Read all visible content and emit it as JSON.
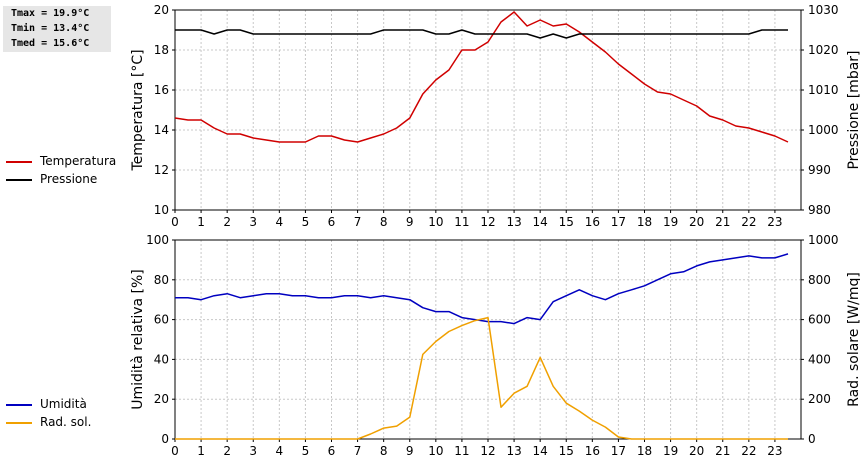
{
  "stats": {
    "tmax": "Tmax = 19.9°C",
    "tmin": "Tmin = 13.4°C",
    "tmed": "Tmed = 15.6°C"
  },
  "legend_top": [
    {
      "label": "Temperatura",
      "color": "#d00000"
    },
    {
      "label": "Pressione",
      "color": "#000000"
    }
  ],
  "legend_bottom": [
    {
      "label": "Umidità",
      "color": "#0000c0"
    },
    {
      "label": "Rad. sol.",
      "color": "#f0a000"
    }
  ],
  "chart_data": [
    {
      "type": "line",
      "grid": true,
      "x": [
        0,
        0.5,
        1,
        1.5,
        2,
        2.5,
        3,
        3.5,
        4,
        4.5,
        5,
        5.5,
        6,
        6.5,
        7,
        7.5,
        8,
        8.5,
        9,
        9.5,
        10,
        10.5,
        11,
        11.5,
        12,
        12.5,
        13,
        13.5,
        14,
        14.5,
        15,
        15.5,
        16,
        16.5,
        17,
        17.5,
        18,
        18.5,
        19,
        19.5,
        20,
        20.5,
        21,
        21.5,
        22,
        22.5,
        23,
        23.5
      ],
      "xticks": [
        "0",
        "1",
        "2",
        "3",
        "4",
        "5",
        "6",
        "7",
        "8",
        "9",
        "10",
        "11",
        "12",
        "13",
        "14",
        "15",
        "16",
        "17",
        "18",
        "19",
        "20",
        "21",
        "22",
        "23"
      ],
      "ylabel": "Temperatura [°C]",
      "ylim": [
        10,
        20
      ],
      "yticks": [
        "10",
        "12",
        "14",
        "16",
        "18",
        "20"
      ],
      "y2label": "Pressione [mbar]",
      "y2lim": [
        980,
        1030
      ],
      "y2ticks": [
        "980",
        "990",
        "1000",
        "1010",
        "1020",
        "1030"
      ],
      "series": [
        {
          "name": "Temperatura",
          "axis": "left",
          "color": "#d00000",
          "values": [
            14.6,
            14.5,
            14.5,
            14.1,
            13.8,
            13.8,
            13.6,
            13.5,
            13.4,
            13.4,
            13.4,
            13.7,
            13.7,
            13.5,
            13.4,
            13.6,
            13.8,
            14.1,
            14.6,
            15.8,
            16.5,
            17.0,
            18.0,
            18.0,
            18.4,
            19.4,
            19.9,
            19.2,
            19.5,
            19.2,
            19.3,
            18.9,
            18.4,
            17.9,
            17.3,
            16.8,
            16.3,
            15.9,
            15.8,
            15.5,
            15.2,
            14.7,
            14.5,
            14.2,
            14.1,
            13.9,
            13.7,
            13.4
          ]
        },
        {
          "name": "Pressione",
          "axis": "right",
          "color": "#000000",
          "values": [
            1025,
            1025,
            1025,
            1024,
            1025,
            1025,
            1024,
            1024,
            1024,
            1024,
            1024,
            1024,
            1024,
            1024,
            1024,
            1024,
            1025,
            1025,
            1025,
            1025,
            1024,
            1024,
            1025,
            1024,
            1024,
            1024,
            1024,
            1024,
            1023,
            1024,
            1023,
            1024,
            1024,
            1024,
            1024,
            1024,
            1024,
            1024,
            1024,
            1024,
            1024,
            1024,
            1024,
            1024,
            1024,
            1025,
            1025,
            1025
          ]
        }
      ]
    },
    {
      "type": "line",
      "grid": true,
      "x": [
        0,
        0.5,
        1,
        1.5,
        2,
        2.5,
        3,
        3.5,
        4,
        4.5,
        5,
        5.5,
        6,
        6.5,
        7,
        7.5,
        8,
        8.5,
        9,
        9.5,
        10,
        10.5,
        11,
        11.5,
        12,
        12.5,
        13,
        13.5,
        14,
        14.5,
        15,
        15.5,
        16,
        16.5,
        17,
        17.5,
        18,
        18.5,
        19,
        19.5,
        20,
        20.5,
        21,
        21.5,
        22,
        22.5,
        23,
        23.5
      ],
      "xticks": [
        "0",
        "1",
        "2",
        "3",
        "4",
        "5",
        "6",
        "7",
        "8",
        "9",
        "10",
        "11",
        "12",
        "13",
        "14",
        "15",
        "16",
        "17",
        "18",
        "19",
        "20",
        "21",
        "22",
        "23"
      ],
      "ylabel": "Umidità relativa [%]",
      "ylim": [
        0,
        100
      ],
      "yticks": [
        "0",
        "20",
        "40",
        "60",
        "80",
        "100"
      ],
      "y2label": "Rad. solare [W/mq]",
      "y2lim": [
        0,
        1000
      ],
      "y2ticks": [
        "0",
        "200",
        "400",
        "600",
        "800",
        "1000"
      ],
      "series": [
        {
          "name": "Umidità",
          "axis": "left",
          "color": "#0000c0",
          "values": [
            71,
            71,
            70,
            72,
            73,
            71,
            72,
            73,
            73,
            72,
            72,
            71,
            71,
            72,
            72,
            71,
            72,
            71,
            70,
            66,
            64,
            64,
            61,
            60,
            59,
            59,
            58,
            61,
            60,
            69,
            72,
            75,
            72,
            70,
            73,
            75,
            77,
            80,
            83,
            84,
            87,
            89,
            90,
            91,
            92,
            91,
            91,
            93
          ]
        },
        {
          "name": "Rad. sol.",
          "axis": "right",
          "color": "#f0a000",
          "values": [
            0,
            0,
            0,
            0,
            0,
            0,
            0,
            0,
            0,
            0,
            0,
            0,
            0,
            0,
            0,
            25,
            55,
            65,
            110,
            425,
            490,
            540,
            570,
            595,
            610,
            160,
            230,
            265,
            410,
            265,
            180,
            140,
            95,
            60,
            10,
            0,
            0,
            0,
            0,
            0,
            0,
            0,
            0,
            0,
            0,
            0,
            0,
            0
          ]
        }
      ]
    }
  ]
}
